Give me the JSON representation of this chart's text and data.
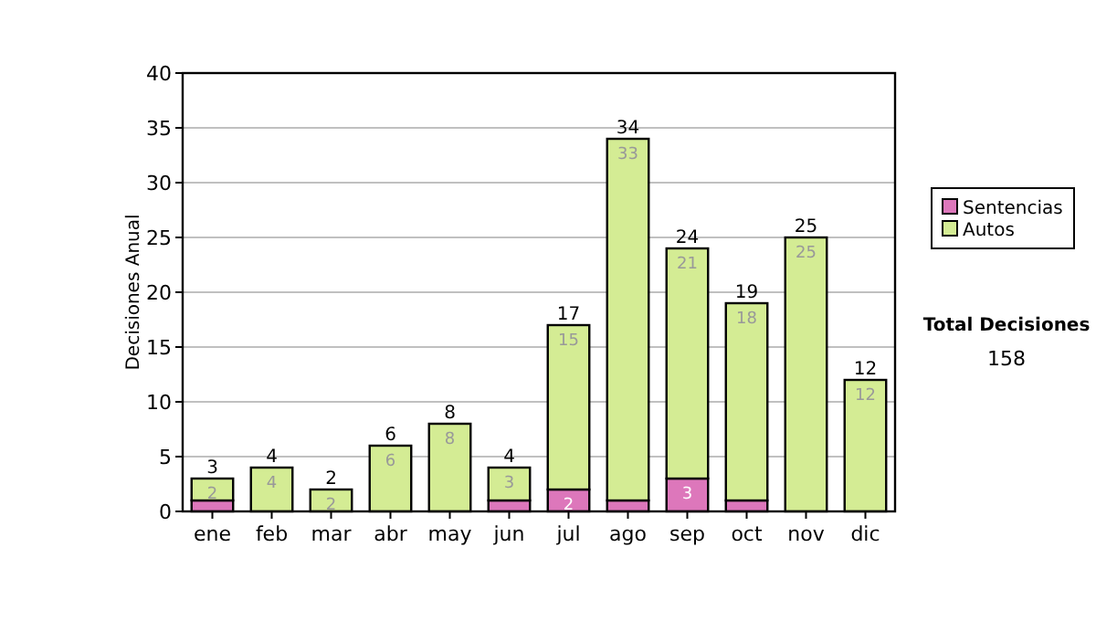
{
  "chart_data": {
    "type": "bar",
    "stacked": true,
    "ylabel": "Decisiones Anual",
    "categories": [
      "ene",
      "feb",
      "mar",
      "abr",
      "may",
      "jun",
      "jul",
      "ago",
      "sep",
      "oct",
      "nov",
      "dic"
    ],
    "series": [
      {
        "name": "Sentencias",
        "color": "#dd77bb",
        "values": [
          1,
          0,
          0,
          0,
          0,
          1,
          2,
          1,
          3,
          1,
          0,
          0
        ],
        "value_labels": [
          null,
          null,
          null,
          null,
          null,
          null,
          "2",
          null,
          "3",
          null,
          null,
          null
        ]
      },
      {
        "name": "Autos",
        "color": "#d4ec94",
        "values": [
          2,
          4,
          2,
          6,
          8,
          3,
          15,
          33,
          21,
          18,
          25,
          12
        ],
        "value_labels": [
          "2",
          "4",
          "2",
          "6",
          "8",
          "3",
          "15",
          "33",
          "21",
          "18",
          "25",
          "12"
        ]
      }
    ],
    "totals": [
      "3",
      "4",
      "2",
      "6",
      "8",
      "4",
      "17",
      "34",
      "24",
      "19",
      "25",
      "12"
    ],
    "ylim": [
      0,
      40
    ],
    "yticks": [
      0,
      5,
      10,
      15,
      20,
      25,
      30,
      35,
      40
    ],
    "grid": "y",
    "legend": "right",
    "annotations": [
      "Total Decisiones",
      "158"
    ]
  }
}
